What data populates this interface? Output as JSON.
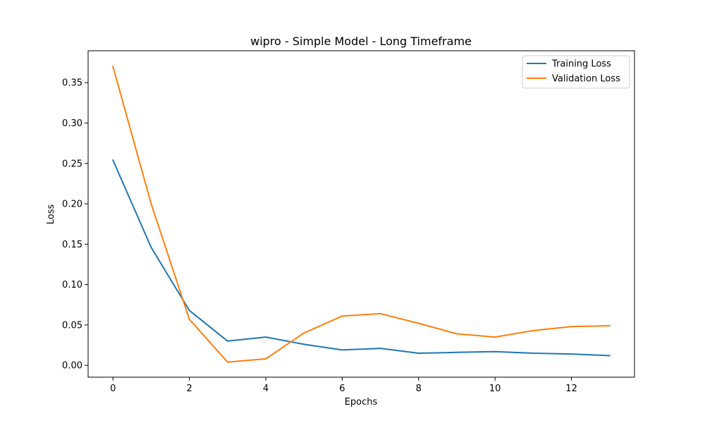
{
  "chart_data": {
    "type": "line",
    "title": "wipro - Simple Model - Long Timeframe",
    "xlabel": "Epochs",
    "ylabel": "Loss",
    "xlim": [
      -0.65,
      13.65
    ],
    "ylim": [
      -0.0147,
      0.3895
    ],
    "x_ticks": [
      0,
      2,
      4,
      6,
      8,
      10,
      12
    ],
    "y_ticks": [
      0.0,
      0.05,
      0.1,
      0.15,
      0.2,
      0.25,
      0.3,
      0.35
    ],
    "y_tick_labels": [
      "0.00",
      "0.05",
      "0.10",
      "0.15",
      "0.20",
      "0.25",
      "0.30",
      "0.35"
    ],
    "legend_position": "top-right",
    "grid": false,
    "x": [
      0,
      1,
      2,
      3,
      4,
      5,
      6,
      7,
      8,
      9,
      10,
      11,
      12,
      13
    ],
    "series": [
      {
        "name": "Training Loss",
        "color": "#1f77b4",
        "values": [
          0.254,
          0.146,
          0.068,
          0.03,
          0.035,
          0.026,
          0.019,
          0.021,
          0.015,
          0.016,
          0.017,
          0.015,
          0.014,
          0.012
        ]
      },
      {
        "name": "Validation Loss",
        "color": "#ff7f0e",
        "values": [
          0.37,
          0.2,
          0.057,
          0.004,
          0.008,
          0.04,
          0.061,
          0.064,
          0.052,
          0.039,
          0.035,
          0.043,
          0.048,
          0.049
        ]
      }
    ]
  }
}
